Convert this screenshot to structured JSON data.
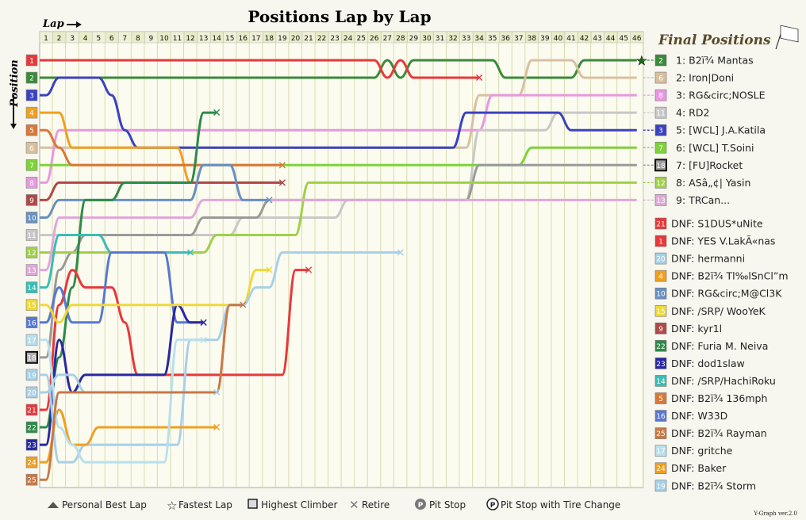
{
  "title": "Positions Lap by Lap",
  "lap_label": "Lap",
  "position_label": "Position",
  "final_title": "Final Positions",
  "version": "Y-Graph ver.2.0",
  "legend": {
    "personal_best": "Personal Best Lap",
    "fastest": "Fastest Lap",
    "climber": "Highest Climber",
    "retire": "Retire",
    "pit": "Pit Stop",
    "pit_tire": "Pit Stop with Tire Change"
  },
  "chart_data": {
    "type": "line",
    "x_label": "Lap",
    "y_label": "Position",
    "xlim": [
      1,
      46
    ],
    "ylim": [
      1,
      25
    ],
    "laps": [
      1,
      2,
      3,
      4,
      5,
      6,
      7,
      8,
      9,
      10,
      11,
      12,
      13,
      14,
      15,
      16,
      17,
      18,
      19,
      20,
      21,
      22,
      23,
      24,
      25,
      26,
      27,
      28,
      29,
      30,
      31,
      32,
      33,
      34,
      35,
      36,
      37,
      38,
      39,
      40,
      41,
      42,
      43,
      44,
      45,
      46
    ],
    "start_numbers": [
      1,
      2,
      3,
      4,
      5,
      6,
      7,
      8,
      9,
      10,
      11,
      12,
      13,
      14,
      15,
      16,
      17,
      18,
      19,
      20,
      21,
      22,
      23,
      24,
      25
    ],
    "start_colors": [
      "#e8383a",
      "#3a8a3a",
      "#3a42c0",
      "#f0a020",
      "#d87838",
      "#d8c0a0",
      "#7ed23a",
      "#e898e0",
      "#b04848",
      "#6890c0",
      "#c8c8c8",
      "#a0d048",
      "#e0a8d8",
      "#3cbcb4",
      "#f0d838",
      "#5878d0",
      "#b8e0ec",
      "#b0b0b0",
      "#a8d0e8",
      "#a8d0e8",
      "#e8383a",
      "#2e8a4a",
      "#2828a0",
      "#f0a020",
      "#c87848"
    ],
    "final_standings": [
      {
        "num": "2",
        "name": "1: B2ï¾ Mantas",
        "color": "#3a8a3a"
      },
      {
        "num": "6",
        "name": "2: Iron|Doni",
        "color": "#d8c0a0"
      },
      {
        "num": "8",
        "name": "3: RG&circ;NOSLE",
        "color": "#e898e0"
      },
      {
        "num": "11",
        "name": "4: RD2",
        "color": "#c8c8c8"
      },
      {
        "num": "3",
        "name": "5: [WCL] J.A.Katila",
        "color": "#3a42c0"
      },
      {
        "num": "7",
        "name": "6: [WCL] T.Soini",
        "color": "#7ed23a"
      },
      {
        "num": "18",
        "name": "7: [FU]Rocket",
        "color": "#9a9a9a"
      },
      {
        "num": "12",
        "name": "8: ASâ„¢| Yasin",
        "color": "#a0d048"
      },
      {
        "num": "13",
        "name": "9: TRCan...",
        "color": "#e0a8d8"
      }
    ],
    "dnf": [
      {
        "num": "21",
        "name": "DNF: S1DUS*uNite",
        "color": "#e8383a"
      },
      {
        "num": "1",
        "name": "DNF: YES V.LakÃ«nas",
        "color": "#e8383a"
      },
      {
        "num": "20",
        "name": "DNF: hermanni",
        "color": "#a8d0e8"
      },
      {
        "num": "4",
        "name": "DNF: B2ï¾ Tl‰lSnCl”m",
        "color": "#f0a020"
      },
      {
        "num": "10",
        "name": "DNF: RG&circ;M@Cl3K",
        "color": "#6890c0"
      },
      {
        "num": "15",
        "name": "DNF: /SRP/ WooYeK",
        "color": "#f0d838"
      },
      {
        "num": "9",
        "name": "DNF: kyr1l",
        "color": "#b04848"
      },
      {
        "num": "22",
        "name": "DNF: Furia M. Neiva",
        "color": "#2e8a4a"
      },
      {
        "num": "23",
        "name": "DNF: dod1slaw",
        "color": "#2828a0"
      },
      {
        "num": "14",
        "name": "DNF: /SRP/HachiRoku",
        "color": "#3cbcb4"
      },
      {
        "num": "5",
        "name": "DNF: B2ï¾ 136mph",
        "color": "#d87838"
      },
      {
        "num": "16",
        "name": "DNF: W33D",
        "color": "#5878d0"
      },
      {
        "num": "25",
        "name": "DNF: B2ï¾ Rayman",
        "color": "#c87848"
      },
      {
        "num": "17",
        "name": "DNF: gritche",
        "color": "#b8e0ec"
      },
      {
        "num": "24",
        "name": "DNF: Baker",
        "color": "#f0a020"
      },
      {
        "num": "19",
        "name": "DNF: B2ï¾ Storm",
        "color": "#a8d0e8"
      }
    ],
    "series": [
      {
        "start": 2,
        "color": "#3a8a3a",
        "pos": [
          2,
          2,
          2,
          2,
          2,
          2,
          2,
          2,
          2,
          2,
          2,
          2,
          2,
          2,
          2,
          2,
          2,
          2,
          2,
          2,
          2,
          2,
          2,
          2,
          2,
          2,
          1,
          2,
          1,
          1,
          1,
          1,
          1,
          1,
          1,
          2,
          2,
          2,
          2,
          2,
          2,
          1,
          1,
          1,
          1,
          1
        ]
      },
      {
        "start": 1,
        "color": "#e8383a",
        "pos": [
          1,
          1,
          1,
          1,
          1,
          1,
          1,
          1,
          1,
          1,
          1,
          1,
          1,
          1,
          1,
          1,
          1,
          1,
          1,
          1,
          1,
          1,
          1,
          1,
          1,
          1,
          2,
          1,
          2,
          2,
          2,
          2,
          2,
          2
        ]
      },
      {
        "start": 6,
        "color": "#d8c0a0",
        "pos": [
          6,
          6,
          6,
          6,
          6,
          6,
          6,
          6,
          6,
          6,
          6,
          6,
          6,
          6,
          6,
          6,
          6,
          6,
          6,
          6,
          6,
          6,
          6,
          6,
          6,
          6,
          6,
          6,
          6,
          6,
          6,
          6,
          6,
          3,
          3,
          3,
          3,
          1,
          1,
          1,
          1,
          2,
          2,
          2,
          2,
          2
        ]
      },
      {
        "start": 8,
        "color": "#e898e0",
        "pos": [
          8,
          5,
          5,
          5,
          5,
          5,
          5,
          5,
          5,
          5,
          5,
          5,
          5,
          5,
          5,
          5,
          5,
          5,
          5,
          5,
          5,
          5,
          5,
          5,
          5,
          5,
          5,
          5,
          5,
          5,
          5,
          5,
          5,
          5,
          3,
          3,
          3,
          3,
          3,
          3,
          3,
          3,
          3,
          3,
          3,
          3
        ]
      },
      {
        "start": 11,
        "color": "#c8c8c8",
        "pos": [
          11,
          11,
          11,
          11,
          11,
          11,
          11,
          11,
          11,
          11,
          11,
          11,
          11,
          11,
          11,
          10,
          10,
          10,
          10,
          10,
          10,
          10,
          10,
          9,
          9,
          9,
          9,
          9,
          9,
          9,
          9,
          9,
          9,
          5,
          5,
          5,
          5,
          5,
          5,
          4,
          4,
          4,
          4,
          4,
          4,
          4
        ]
      },
      {
        "start": 3,
        "color": "#3a42c0",
        "pos": [
          3,
          2,
          2,
          2,
          2,
          3,
          5,
          6,
          6,
          6,
          6,
          6,
          6,
          6,
          6,
          6,
          6,
          6,
          6,
          6,
          6,
          6,
          6,
          6,
          6,
          6,
          6,
          6,
          6,
          6,
          6,
          6,
          4,
          4,
          4,
          4,
          4,
          4,
          4,
          4,
          5,
          5,
          5,
          5,
          5,
          5
        ]
      },
      {
        "start": 7,
        "color": "#7ed23a",
        "pos": [
          7,
          7,
          7,
          7,
          7,
          7,
          7,
          7,
          7,
          7,
          7,
          7,
          7,
          7,
          7,
          7,
          7,
          7,
          7,
          7,
          7,
          7,
          7,
          7,
          7,
          7,
          7,
          7,
          7,
          7,
          7,
          7,
          7,
          7,
          7,
          7,
          7,
          6,
          6,
          6,
          6,
          6,
          6,
          6,
          6,
          6
        ]
      },
      {
        "start": 18,
        "color": "#9a9a9a",
        "pos": [
          18,
          13,
          12,
          11,
          11,
          11,
          11,
          11,
          11,
          11,
          11,
          11,
          10,
          10,
          10,
          10,
          10,
          9,
          9,
          9,
          9,
          9,
          9,
          9,
          9,
          9,
          9,
          9,
          9,
          9,
          9,
          9,
          9,
          7,
          7,
          7,
          7,
          7,
          7,
          7,
          7,
          7,
          7,
          7,
          7,
          7
        ]
      },
      {
        "start": 12,
        "color": "#a0d048",
        "pos": [
          12,
          12,
          12,
          12,
          12,
          12,
          12,
          12,
          12,
          12,
          12,
          12,
          12,
          11,
          11,
          11,
          11,
          11,
          11,
          11,
          8,
          8,
          8,
          8,
          8,
          8,
          8,
          8,
          8,
          8,
          8,
          8,
          8,
          8,
          8,
          8,
          8,
          8,
          8,
          8,
          8,
          8,
          8,
          8,
          8,
          8
        ]
      },
      {
        "start": 13,
        "color": "#e0a8d8",
        "pos": [
          13,
          10,
          10,
          10,
          10,
          10,
          10,
          10,
          10,
          10,
          10,
          10,
          9,
          9,
          9,
          9,
          9,
          9,
          9,
          9,
          9,
          9,
          9,
          9,
          9,
          9,
          9,
          9,
          9,
          9,
          9,
          9,
          9,
          9,
          9,
          9,
          9,
          9,
          9,
          9,
          9,
          9,
          9,
          9,
          9,
          9
        ]
      },
      {
        "start": 4,
        "color": "#f0a020",
        "pos": [
          4,
          4,
          6,
          6,
          6,
          6,
          6,
          6,
          6,
          6,
          6,
          8,
          8,
          8,
          8,
          8,
          8,
          8,
          8
        ]
      },
      {
        "start": 5,
        "color": "#d87838",
        "pos": [
          5,
          6,
          7,
          7,
          7,
          7,
          7,
          7,
          7,
          7,
          7,
          7,
          7,
          7,
          7,
          7,
          7,
          7,
          7
        ]
      },
      {
        "start": 9,
        "color": "#b04848",
        "pos": [
          9,
          8,
          8,
          8,
          8,
          8,
          8,
          8,
          8,
          8,
          8,
          8,
          8,
          8,
          8,
          8,
          8,
          8,
          8
        ]
      },
      {
        "start": 10,
        "color": "#6890c0",
        "pos": [
          10,
          9,
          9,
          9,
          9,
          9,
          9,
          9,
          9,
          9,
          9,
          9,
          7,
          7,
          7,
          9,
          9,
          9
        ]
      },
      {
        "start": 22,
        "color": "#2e8a4a",
        "pos": [
          22,
          18,
          14,
          9,
          9,
          9,
          8,
          8,
          8,
          8,
          8,
          8,
          4,
          4
        ]
      },
      {
        "start": 21,
        "color": "#e8383a",
        "pos": [
          21,
          15,
          13,
          14,
          14,
          14,
          16,
          19,
          19,
          19,
          19,
          19,
          19,
          19,
          19,
          19,
          19,
          19,
          19,
          13,
          13
        ]
      },
      {
        "start": 14,
        "color": "#3cbcb4",
        "pos": [
          14,
          11,
          11,
          11,
          11,
          12,
          12,
          12,
          12,
          12,
          12,
          12
        ]
      },
      {
        "start": 16,
        "color": "#5878d0",
        "pos": [
          16,
          14,
          16,
          16,
          16,
          12,
          12,
          12,
          12,
          12,
          16,
          16,
          16
        ]
      },
      {
        "start": 23,
        "color": "#2828a0",
        "pos": [
          23,
          17,
          20,
          19,
          19,
          19,
          19,
          19,
          19,
          19,
          15,
          16,
          16
        ]
      },
      {
        "start": 15,
        "color": "#f0d838",
        "pos": [
          15,
          16,
          15,
          15,
          15,
          15,
          15,
          15,
          15,
          15,
          15,
          15,
          15,
          15,
          15,
          15,
          13,
          13
        ]
      },
      {
        "start": 19,
        "color": "#a8d0e8",
        "pos": [
          19,
          24,
          24,
          23,
          23,
          23,
          23,
          23,
          23,
          23,
          23,
          17,
          17,
          17,
          15,
          15,
          14,
          14,
          12,
          12,
          12,
          12,
          12,
          12,
          12,
          12,
          12,
          12
        ]
      },
      {
        "start": 20,
        "color": "#a8d0e8",
        "pos": [
          20,
          19,
          19,
          20,
          20,
          20,
          20,
          20,
          20,
          20,
          20,
          20,
          20,
          20
        ]
      },
      {
        "start": 24,
        "color": "#f0a020",
        "pos": [
          24,
          21,
          23,
          23,
          22,
          22,
          22,
          22,
          22,
          22,
          22,
          22,
          22,
          22
        ]
      },
      {
        "start": 17,
        "color": "#b8e0ec",
        "pos": [
          17,
          22,
          23,
          24,
          24,
          24,
          24,
          24,
          24,
          24,
          17,
          17,
          17
        ]
      },
      {
        "start": 25,
        "color": "#c87848",
        "pos": [
          25,
          20,
          20,
          20,
          20,
          20,
          20,
          20,
          20,
          20,
          20,
          20,
          20,
          20,
          15,
          15
        ]
      }
    ]
  }
}
